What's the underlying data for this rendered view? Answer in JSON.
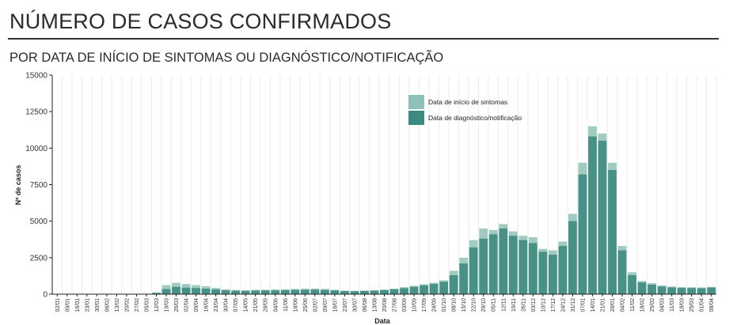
{
  "header": {
    "title": "NÚMERO DE CASOS CONFIRMADOS",
    "subtitle": "POR DATA DE INÍCIO DE SINTOMAS OU DIAGNÓSTICO/NOTIFICAÇÃO"
  },
  "colors": {
    "symptom_onset": "#8ec2b6",
    "diagnosis": "#3d8b80",
    "axis": "#222222",
    "grid": "#ececec"
  },
  "chart_data": {
    "type": "bar",
    "xlabel": "Data",
    "ylabel": "Nº de casos",
    "ylim": [
      0,
      15000
    ],
    "yticks": [
      0,
      2500,
      5000,
      7500,
      10000,
      12500,
      15000
    ],
    "grid": true,
    "legend_position": "top-right",
    "x_tick_labels": [
      "02/01",
      "09/01",
      "16/01",
      "23/01",
      "30/01",
      "06/02",
      "13/02",
      "20/02",
      "27/02",
      "05/03",
      "12/03",
      "19/03",
      "26/03",
      "02/04",
      "09/04",
      "16/04",
      "23/04",
      "30/04",
      "07/05",
      "14/05",
      "21/05",
      "28/05",
      "04/06",
      "11/06",
      "18/06",
      "25/06",
      "02/07",
      "09/07",
      "16/07",
      "23/07",
      "30/07",
      "06/08",
      "13/08",
      "20/08",
      "27/08",
      "03/09",
      "10/09",
      "17/09",
      "24/09",
      "01/10",
      "08/10",
      "15/10",
      "22/10",
      "29/10",
      "05/11",
      "12/11",
      "19/11",
      "26/11",
      "03/12",
      "10/12",
      "17/12",
      "24/12",
      "31/12",
      "07/01",
      "14/01",
      "21/01",
      "28/01",
      "04/02",
      "11/02",
      "18/02",
      "25/02",
      "04/03",
      "11/03",
      "18/03",
      "25/03",
      "01/04",
      "08/04"
    ],
    "series": [
      {
        "name": "Data de início de sintomas",
        "weekly_values": [
          0,
          0,
          0,
          0,
          0,
          0,
          0,
          0,
          0,
          0,
          120,
          620,
          780,
          700,
          620,
          540,
          430,
          330,
          290,
          270,
          300,
          310,
          320,
          340,
          360,
          380,
          380,
          360,
          300,
          240,
          230,
          250,
          270,
          310,
          380,
          480,
          580,
          680,
          780,
          950,
          1600,
          2500,
          3700,
          4500,
          4400,
          4800,
          4300,
          4000,
          3900,
          3100,
          3000,
          3600,
          5500,
          9000,
          11500,
          11000,
          9000,
          3300,
          1500,
          900,
          750,
          600,
          520,
          480,
          470,
          460,
          500
        ]
      },
      {
        "name": "Data de diagnóstico/notificação",
        "weekly_values": [
          0,
          0,
          0,
          0,
          0,
          0,
          0,
          0,
          0,
          0,
          80,
          350,
          500,
          450,
          420,
          380,
          320,
          260,
          230,
          220,
          240,
          250,
          260,
          270,
          290,
          300,
          310,
          290,
          250,
          210,
          200,
          220,
          240,
          280,
          330,
          410,
          500,
          600,
          700,
          850,
          1300,
          2100,
          3200,
          3800,
          4100,
          4500,
          4000,
          3700,
          3500,
          2900,
          2700,
          3300,
          5000,
          8200,
          10800,
          10500,
          8500,
          3000,
          1300,
          800,
          650,
          520,
          460,
          430,
          420,
          400,
          450
        ]
      }
    ]
  }
}
